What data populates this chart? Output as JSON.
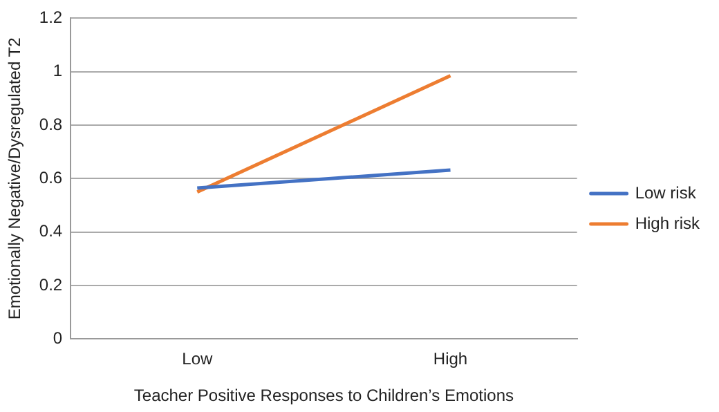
{
  "chart_data": {
    "type": "line",
    "xlabel": "Teacher Positive Responses to Children’s Emotions",
    "ylabel": "Emotionally Negative/Dysregulated T2",
    "categories": [
      "Low",
      "High"
    ],
    "series": [
      {
        "name": "Low risk",
        "color": "#4472c4",
        "values": [
          0.565,
          0.632
        ]
      },
      {
        "name": "High risk",
        "color": "#ed7d31",
        "values": [
          0.55,
          0.985
        ]
      }
    ],
    "ylim": [
      0,
      1.2
    ],
    "yticks": [
      0,
      0.2,
      0.4,
      0.6,
      0.8,
      1,
      1.2
    ],
    "grid": "y",
    "legend": "right",
    "marker": "none"
  }
}
